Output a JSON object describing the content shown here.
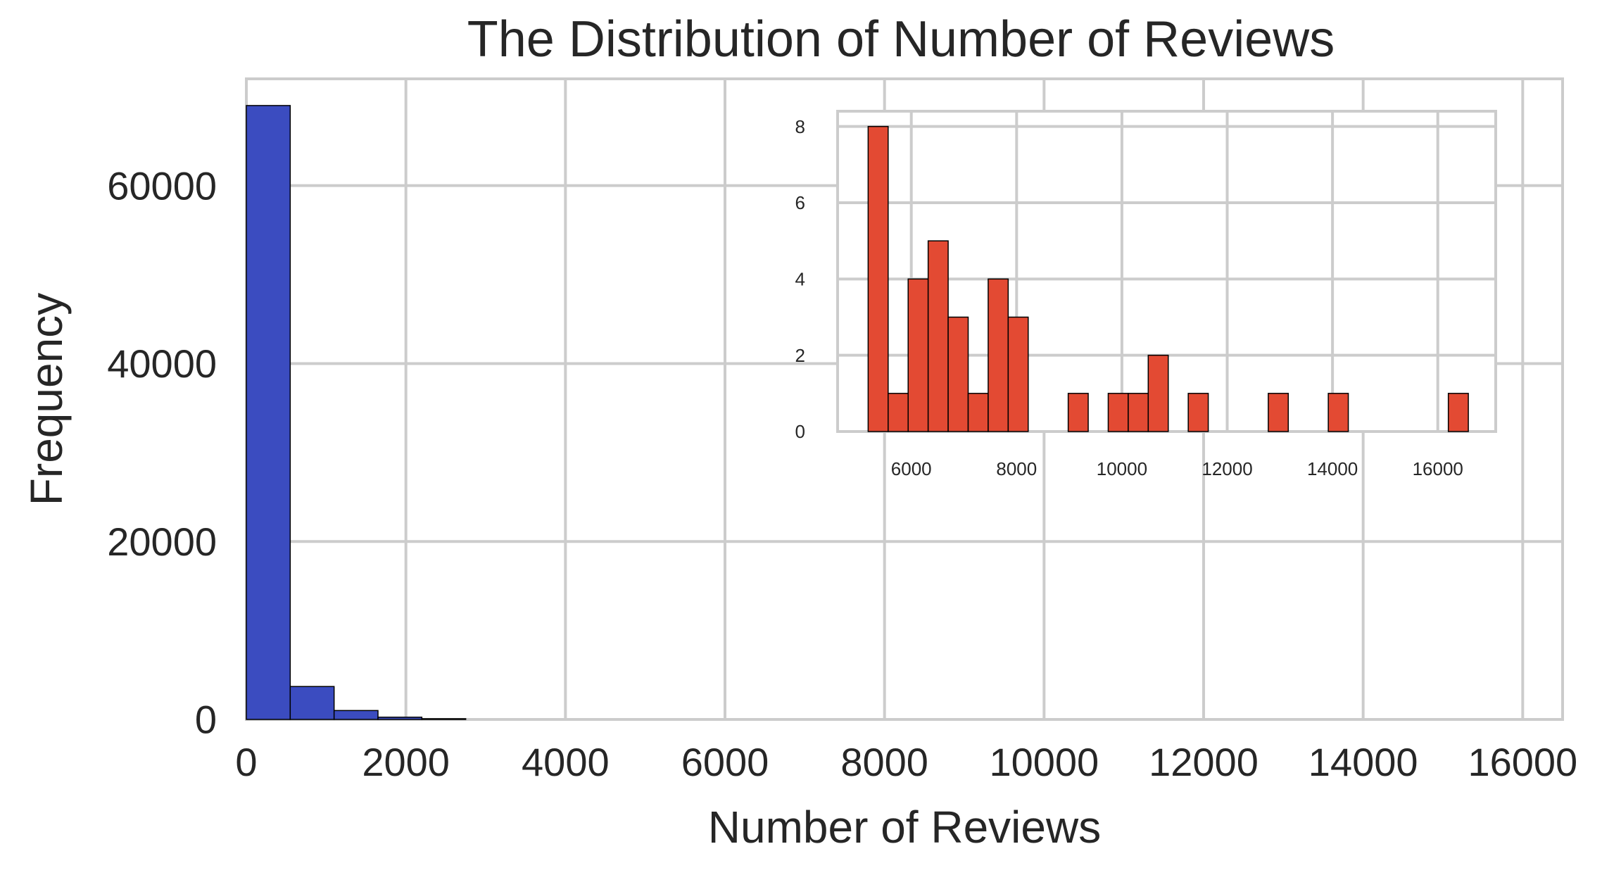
{
  "chart_data": [
    {
      "type": "bar",
      "title": "The Distribution of Number of Reviews",
      "xlabel": "Number of Reviews",
      "ylabel": "Frequency",
      "xlim": [
        0,
        16500
      ],
      "ylim": [
        0,
        72000
      ],
      "xticks": [
        0,
        2000,
        4000,
        6000,
        8000,
        10000,
        12000,
        14000,
        16000
      ],
      "yticks": [
        0,
        20000,
        40000,
        60000
      ],
      "grid": true,
      "bin_edges": [
        0,
        550,
        1100,
        1650,
        2200,
        2750
      ],
      "values": [
        69000,
        3700,
        1000,
        250,
        80
      ],
      "color": "#3b4cc0"
    },
    {
      "type": "bar",
      "title": "",
      "xlabel": "",
      "ylabel": "",
      "xlim": [
        4600,
        17100
      ],
      "ylim": [
        0,
        8.4
      ],
      "xticks": [
        6000,
        8000,
        10000,
        12000,
        14000,
        16000
      ],
      "yticks": [
        0,
        2,
        4,
        6,
        8
      ],
      "grid": true,
      "bin_width": 380,
      "bin_starts": [
        5180,
        5560,
        5940,
        6320,
        6700,
        7080,
        7460,
        7840,
        8980,
        9740,
        10120,
        10500,
        11260,
        12780,
        13920,
        16200
      ],
      "values": [
        8,
        1,
        4,
        5,
        3,
        1,
        4,
        3,
        1,
        1,
        1,
        2,
        1,
        1,
        1,
        1
      ],
      "color": "#e34a33"
    }
  ]
}
